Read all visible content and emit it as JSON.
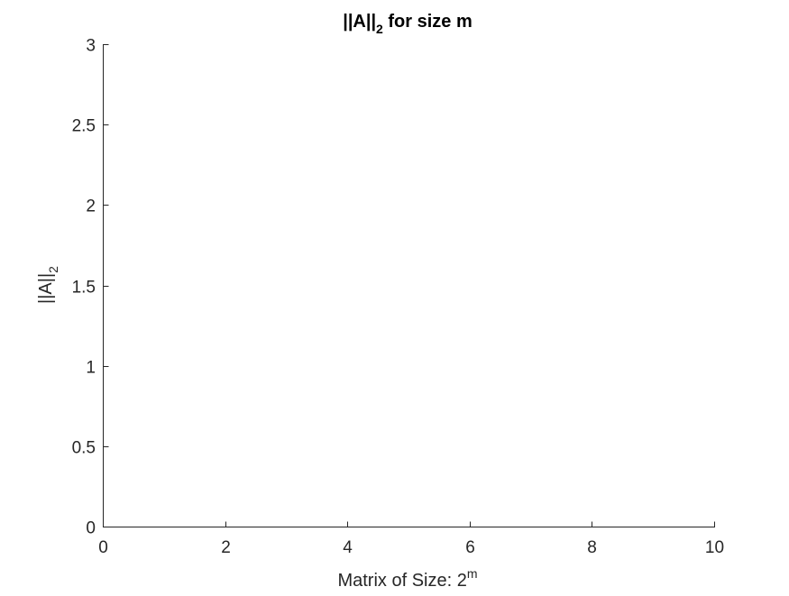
{
  "chart_data": {
    "type": "line",
    "title": {
      "main": "||A||",
      "subscript": "2",
      "suffix": " for size m"
    },
    "xlabel": {
      "main": "Matrix of Size: 2",
      "superscript": "m"
    },
    "ylabel": {
      "main": "||A||",
      "subscript": "2"
    },
    "xlim": [
      0,
      10
    ],
    "ylim": [
      0,
      3
    ],
    "xticks": [
      0,
      2,
      4,
      6,
      8,
      10
    ],
    "yticks": [
      0,
      0.5,
      1,
      1.5,
      2,
      2.5,
      3
    ],
    "xtick_labels": [
      "0",
      "2",
      "4",
      "6",
      "8",
      "10"
    ],
    "ytick_labels": [
      "0",
      "0.5",
      "1",
      "1.5",
      "2",
      "2.5",
      "3"
    ],
    "series": [],
    "grid": false,
    "box": false,
    "colors": {
      "axis": "#262626",
      "title": "#000000",
      "background": "#ffffff"
    }
  }
}
